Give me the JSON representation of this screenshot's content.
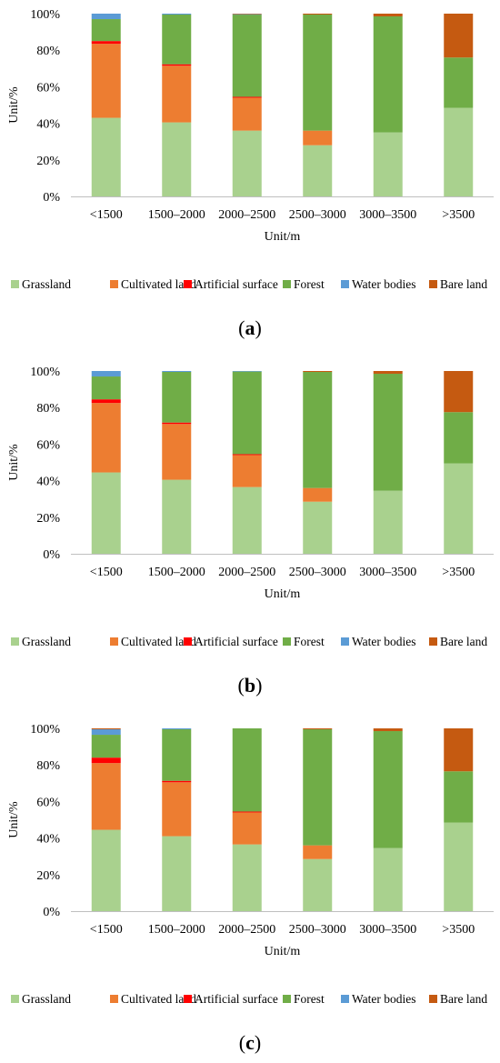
{
  "colors": {
    "Grassland": "#a9d18e",
    "Cultivated land": "#ed7d31",
    "Artificial surface": "#ff0000",
    "Forest": "#70ad47",
    "Water bodies": "#5b9bd5",
    "Bare land": "#c55a11"
  },
  "panels": [
    {
      "caption_open": "(",
      "caption_letter": "a",
      "caption_close": ")",
      "chart_data": {
        "type": "bar",
        "stacked": true,
        "categories": [
          "<1500",
          "1500–2000",
          "2000–2500",
          "2500–3000",
          "3000–3500",
          ">3500"
        ],
        "xlabel": "Unit/m",
        "ylabel": "Unit/%",
        "ylim": [
          0,
          100
        ],
        "yticks": [
          "0%",
          "20%",
          "40%",
          "60%",
          "80%",
          "100%"
        ],
        "legend_position": "bottom",
        "series": [
          {
            "name": "Grassland",
            "values": [
              43,
              40.5,
              36,
              28,
              35,
              48.5
            ]
          },
          {
            "name": "Cultivated land",
            "values": [
              40.5,
              31,
              18,
              8,
              0,
              0
            ]
          },
          {
            "name": "Artificial surface",
            "values": [
              1.5,
              0.8,
              0.5,
              0,
              0,
              0
            ]
          },
          {
            "name": "Forest",
            "values": [
              12,
              27.2,
              45,
              63.5,
              63.5,
              27.5
            ]
          },
          {
            "name": "Water bodies",
            "values": [
              3,
              0.5,
              0.2,
              0,
              0,
              0
            ]
          },
          {
            "name": "Bare land",
            "values": [
              0,
              0,
              0.3,
              0.5,
              1.5,
              24
            ]
          }
        ]
      }
    },
    {
      "caption_open": "(",
      "caption_letter": "b",
      "caption_close": ")",
      "chart_data": {
        "type": "bar",
        "stacked": true,
        "categories": [
          "<1500",
          "1500–2000",
          "2000–2500",
          "2500–3000",
          "3000–3500",
          ">3500"
        ],
        "xlabel": "Unit/m",
        "ylabel": "Unit/%",
        "ylim": [
          0,
          100
        ],
        "yticks": [
          "0%",
          "20%",
          "40%",
          "60%",
          "80%",
          "100%"
        ],
        "legend_position": "bottom",
        "series": [
          {
            "name": "Grassland",
            "values": [
              44.5,
              40.5,
              36.5,
              28.5,
              34.5,
              49.5
            ]
          },
          {
            "name": "Cultivated land",
            "values": [
              38,
              30.5,
              17.5,
              7.5,
              0,
              0
            ]
          },
          {
            "name": "Artificial surface",
            "values": [
              2,
              0.8,
              0.5,
              0,
              0,
              0
            ]
          },
          {
            "name": "Forest",
            "values": [
              12.5,
              27.7,
              45.2,
              63.5,
              64,
              28
            ]
          },
          {
            "name": "Water bodies",
            "values": [
              3,
              0.5,
              0.3,
              0,
              0,
              0
            ]
          },
          {
            "name": "Bare land",
            "values": [
              0,
              0,
              0,
              0.5,
              1.5,
              22.5
            ]
          }
        ]
      }
    },
    {
      "caption_open": "(",
      "caption_letter": "c",
      "caption_close": ")",
      "chart_data": {
        "type": "bar",
        "stacked": true,
        "categories": [
          "<1500",
          "1500–2000",
          "2000–2500",
          "2500–3000",
          "3000–3500",
          ">3500"
        ],
        "xlabel": "Unit/m",
        "ylabel": "Unit/%",
        "ylim": [
          0,
          100
        ],
        "yticks": [
          "0%",
          "20%",
          "40%",
          "60%",
          "80%",
          "100%"
        ],
        "legend_position": "bottom",
        "series": [
          {
            "name": "Grassland",
            "values": [
              44.5,
              41,
              36.5,
              28.5,
              34.5,
              48.5
            ]
          },
          {
            "name": "Cultivated land",
            "values": [
              36.5,
              29.5,
              17.5,
              7.5,
              0,
              0
            ]
          },
          {
            "name": "Artificial surface",
            "values": [
              3,
              0.8,
              0.5,
              0,
              0,
              0
            ]
          },
          {
            "name": "Forest",
            "values": [
              12.5,
              28.2,
              45.5,
              63.5,
              64,
              28
            ]
          },
          {
            "name": "Water bodies",
            "values": [
              3,
              0.5,
              0,
              0,
              0,
              0
            ]
          },
          {
            "name": "Bare land",
            "values": [
              0.5,
              0,
              0,
              0.5,
              1.5,
              23.5
            ]
          }
        ]
      }
    }
  ]
}
